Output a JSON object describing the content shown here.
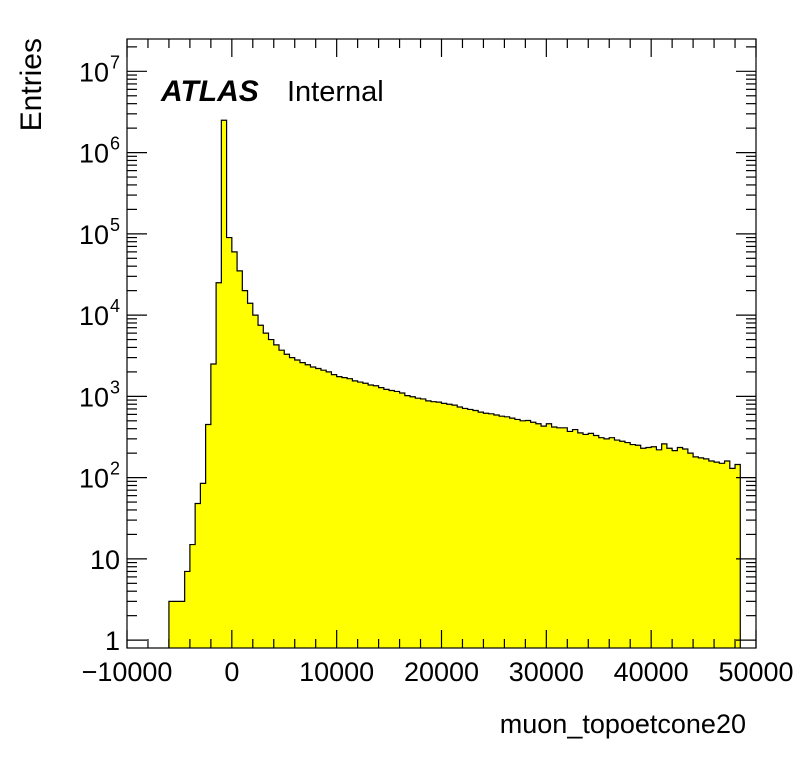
{
  "chart_data": {
    "type": "histogram",
    "xlabel": "muon_topoetcone20",
    "ylabel": "Entries",
    "label": {
      "atlas": "ATLAS",
      "status": "Internal"
    },
    "x_scale": "linear",
    "y_scale": "log",
    "xlim": [
      -10000,
      50000
    ],
    "ylim": [
      0.8,
      25000000
    ],
    "x_ticks": [
      {
        "value": -10000,
        "label": "−10000"
      },
      {
        "value": 0,
        "label": "0"
      },
      {
        "value": 10000,
        "label": "10000"
      },
      {
        "value": 20000,
        "label": "20000"
      },
      {
        "value": 30000,
        "label": "30000"
      },
      {
        "value": 40000,
        "label": "40000"
      },
      {
        "value": 50000,
        "label": "50000"
      }
    ],
    "y_ticks": [
      {
        "value": 1,
        "base": "1",
        "exp": ""
      },
      {
        "value": 10,
        "base": "10",
        "exp": ""
      },
      {
        "value": 100,
        "base": "10",
        "exp": "2"
      },
      {
        "value": 1000,
        "base": "10",
        "exp": "3"
      },
      {
        "value": 10000,
        "base": "10",
        "exp": "4"
      },
      {
        "value": 100000,
        "base": "10",
        "exp": "5"
      },
      {
        "value": 1000000,
        "base": "10",
        "exp": "6"
      },
      {
        "value": 10000000,
        "base": "10",
        "exp": "7"
      }
    ],
    "fill_color": "#ffff00",
    "line_color": "#000000",
    "bin_start": -6000,
    "bin_width": 500,
    "counts": [
      3,
      3,
      3,
      7,
      15,
      48,
      85,
      450,
      2500,
      25000,
      2500000,
      90000,
      60000,
      35000,
      20000,
      14000,
      10000,
      7500,
      6000,
      5000,
      4300,
      3700,
      3300,
      3000,
      2800,
      2600,
      2450,
      2300,
      2200,
      2100,
      2000,
      1850,
      1750,
      1700,
      1650,
      1550,
      1500,
      1450,
      1380,
      1350,
      1280,
      1220,
      1180,
      1150,
      1100,
      1020,
      990,
      950,
      930,
      880,
      860,
      850,
      820,
      800,
      780,
      740,
      710,
      690,
      670,
      640,
      620,
      610,
      590,
      570,
      560,
      540,
      520,
      500,
      505,
      480,
      460,
      430,
      460,
      420,
      410,
      410,
      370,
      390,
      355,
      340,
      350,
      330,
      310,
      300,
      310,
      290,
      280,
      270,
      255,
      250,
      230,
      235,
      240,
      220,
      260,
      230,
      215,
      235,
      225,
      200,
      180,
      175,
      170,
      160,
      155,
      150,
      160,
      130,
      145
    ]
  }
}
